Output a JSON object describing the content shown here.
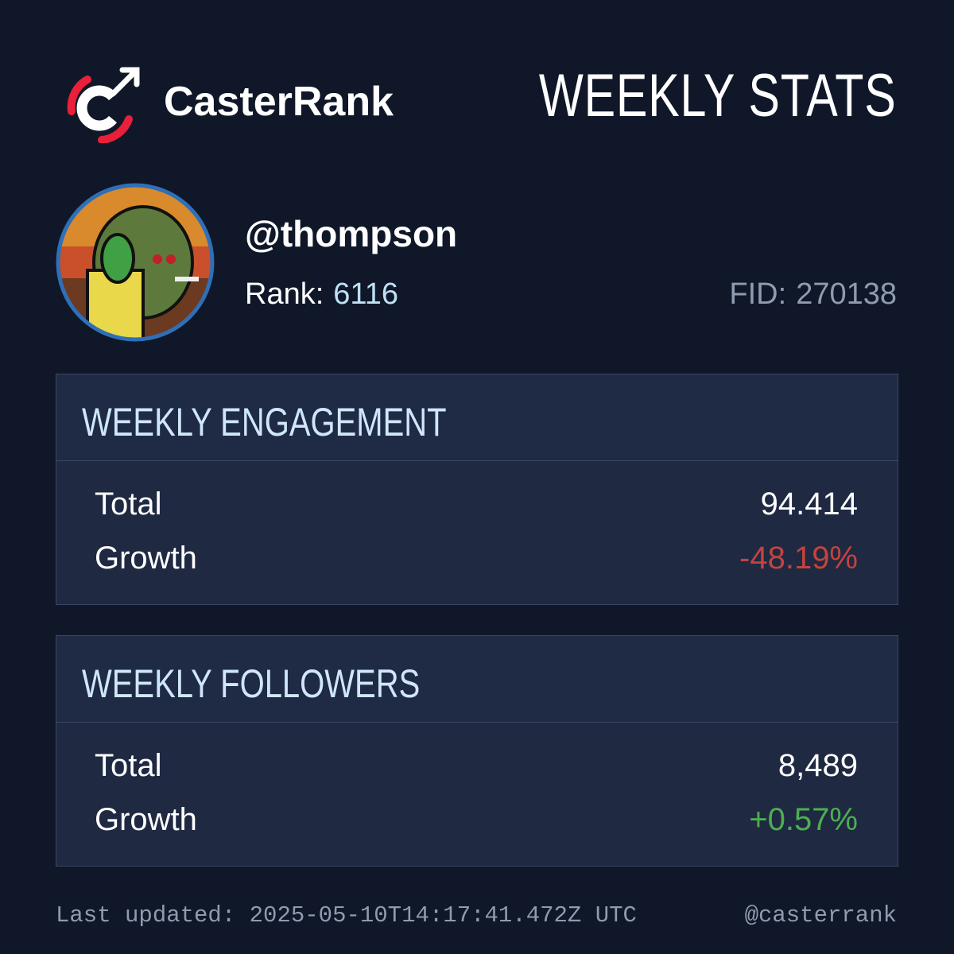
{
  "header": {
    "brand": "CasterRank",
    "title": "WEEKLY STATS"
  },
  "profile": {
    "username": "@thompson",
    "rank_label": "Rank:",
    "rank": "6116",
    "fid_label": "FID:",
    "fid": "270138"
  },
  "sections": [
    {
      "title": "WEEKLY ENGAGEMENT",
      "rows": [
        [
          "Total",
          "94.414"
        ],
        [
          "Growth",
          "-48.19%"
        ]
      ]
    },
    {
      "title": "WEEKLY FOLLOWERS",
      "rows": [
        [
          "Total",
          "8,489"
        ],
        [
          "Growth",
          "+0.57%"
        ]
      ]
    }
  ],
  "footer": {
    "updated_label": "Last updated:",
    "updated": "2025-05-10T14:17:41.472Z UTC",
    "handle": "@casterrank"
  }
}
